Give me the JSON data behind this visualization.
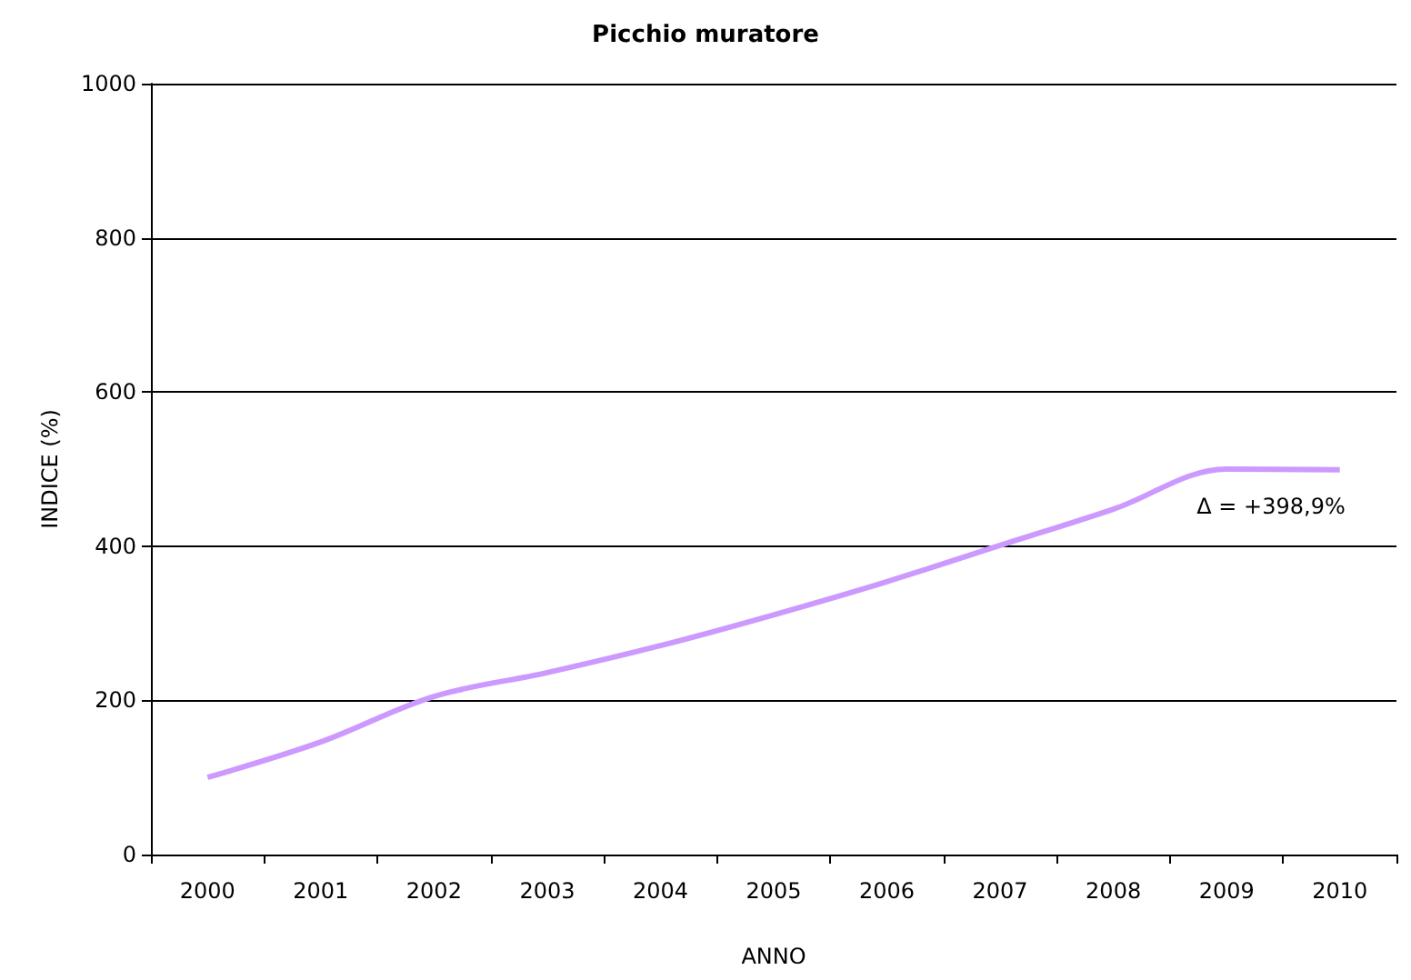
{
  "chart_data": {
    "type": "line",
    "title": "Picchio muratore",
    "xlabel": "ANNO",
    "ylabel": "INDICE (%)",
    "categories": [
      "2000",
      "2001",
      "2002",
      "2003",
      "2004",
      "2005",
      "2006",
      "2007",
      "2008",
      "2009",
      "2010"
    ],
    "series": [
      {
        "color": "#cc99ff",
        "values": [
          100,
          146,
          205,
          236,
          271,
          311,
          354,
          401,
          448,
          500,
          499
        ]
      }
    ],
    "ylim": [
      0,
      1000
    ],
    "yticks": [
      0,
      200,
      400,
      600,
      800,
      1000
    ],
    "grid": "y",
    "marker": "none",
    "line_style": "solid",
    "annotations": [
      {
        "text": "Δ = +398,9%",
        "x": "2010",
        "y": 499
      }
    ]
  }
}
